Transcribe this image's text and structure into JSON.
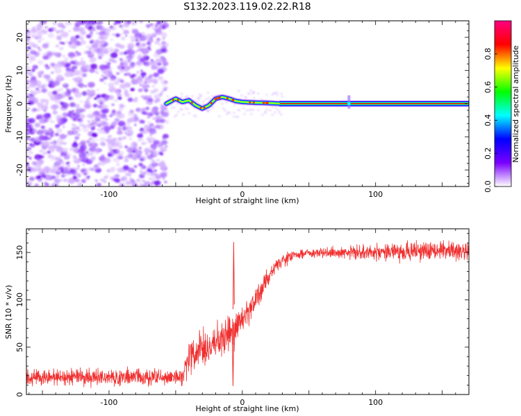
{
  "title": "S132.2023.119.02.22.R18",
  "chart_data": [
    {
      "type": "heatmap",
      "xlabel": "Height of straight line (km)",
      "ylabel": "Frequency (Hz)",
      "xlim": [
        -162,
        170
      ],
      "ylim": [
        -25,
        25
      ],
      "x_ticks": [
        "-100",
        "0",
        "100"
      ],
      "y_ticks": [
        "-20",
        "-10",
        "0",
        "10",
        "20"
      ],
      "colorbar": {
        "label": "Normalized spectral amplitude",
        "range": [
          0,
          1
        ],
        "ticks": [
          "0.0",
          "0.2",
          "0.4",
          "0.6",
          "0.8"
        ],
        "colors": [
          "#ffffff",
          "#7a00ff",
          "#0000ff",
          "#00ffff",
          "#00ff00",
          "#ffff00",
          "#ff0000",
          "#ff0080"
        ]
      },
      "regions": {
        "noise": {
          "x": [
            -162,
            -57
          ],
          "y": [
            -25,
            25
          ],
          "amplitude": 0.15
        },
        "wandering_line": {
          "x": [
            -57,
            -50,
            -45,
            -40,
            -35,
            -30,
            -25,
            -20,
            -15,
            -10,
            -5,
            0,
            10,
            20,
            28
          ],
          "y": [
            0.0,
            1.5,
            0.5,
            1.0,
            -0.5,
            -1.5,
            -0.5,
            1.5,
            2.0,
            1.5,
            0.8,
            0.5,
            0.3,
            0.2,
            0.0
          ],
          "amplitude": 0.55
        },
        "steady_line": {
          "x": [
            28,
            170
          ],
          "y": 0.0,
          "amplitude": 0.9
        },
        "spike": {
          "x": 80,
          "y": [
            -1.5,
            2.5
          ],
          "amplitude": 0.3
        }
      }
    },
    {
      "type": "line",
      "xlabel": "Height of straight line (km)",
      "ylabel": "SNR (10 * v/v)",
      "xlim": [
        -162,
        170
      ],
      "ylim": [
        0,
        175
      ],
      "x_ticks": [
        "-100",
        "0",
        "100"
      ],
      "y_ticks": [
        "0",
        "50",
        "100",
        "150"
      ],
      "color": "#f03030",
      "series": [
        {
          "x": [
            -162,
            -120,
            -80,
            -45,
            -40,
            -35,
            -30,
            -20,
            -15,
            -10,
            -5,
            0,
            10,
            15,
            20,
            25,
            30,
            40,
            60,
            80,
            100,
            120,
            140,
            170
          ],
          "y": [
            18,
            18,
            18,
            18,
            40,
            45,
            48,
            55,
            60,
            65,
            70,
            78,
            100,
            112,
            125,
            135,
            142,
            148,
            150,
            150,
            150,
            151,
            152,
            152
          ],
          "noise_amplitude": [
            8,
            8,
            8,
            8,
            18,
            18,
            18,
            18,
            18,
            18,
            16,
            14,
            12,
            10,
            8,
            6,
            6,
            5,
            5,
            6,
            8,
            9,
            9,
            9
          ]
        }
      ],
      "annotations": [
        {
          "x": -6.5,
          "y": 161
        },
        {
          "x": -7.0,
          "y": 9
        }
      ]
    }
  ]
}
